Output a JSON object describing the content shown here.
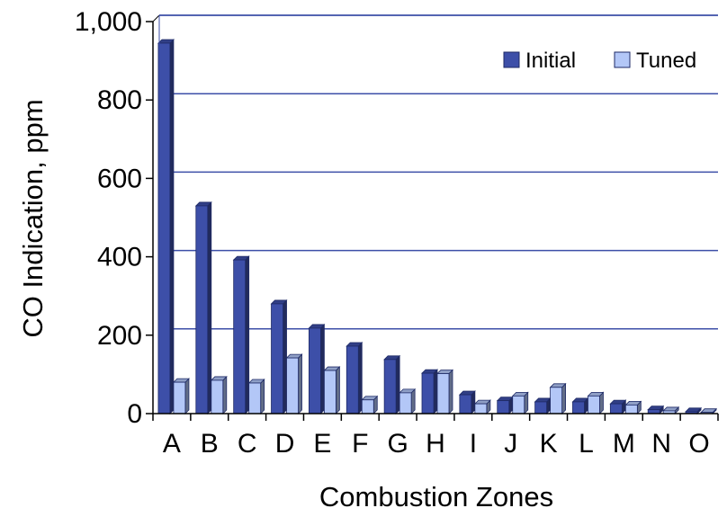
{
  "chart_data": {
    "type": "bar",
    "title": "",
    "xlabel": "Combustion Zones",
    "ylabel": "CO Indication, ppm",
    "categories": [
      "A",
      "B",
      "C",
      "D",
      "E",
      "F",
      "G",
      "H",
      "I",
      "J",
      "K",
      "L",
      "M",
      "N",
      "O"
    ],
    "series": [
      {
        "name": "Initial",
        "values": [
          945,
          530,
          392,
          280,
          218,
          172,
          138,
          103,
          48,
          33,
          30,
          30,
          25,
          10,
          5
        ],
        "color": "#3d4fa8"
      },
      {
        "name": "Tuned",
        "values": [
          80,
          85,
          78,
          142,
          110,
          35,
          53,
          102,
          25,
          45,
          67,
          45,
          22,
          7,
          3
        ],
        "color": "#b3c7f7"
      }
    ],
    "ylim": [
      0,
      1000
    ],
    "yticks": [
      0,
      200,
      400,
      600,
      800,
      1000
    ],
    "ytick_labels": [
      "0",
      "200",
      "400",
      "600",
      "800",
      "1,000"
    ],
    "grid": true,
    "legend": "top-right"
  }
}
